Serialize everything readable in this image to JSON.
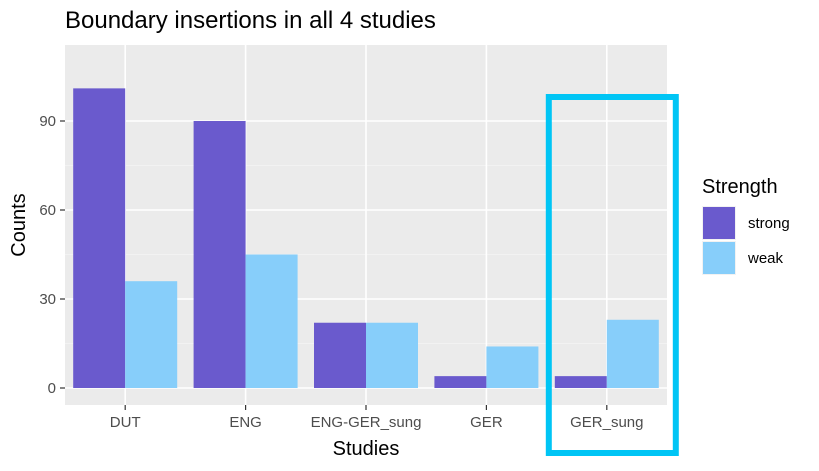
{
  "chart_data": {
    "type": "bar",
    "title": "Boundary insertions in all 4 studies",
    "xlabel": "Studies",
    "ylabel": "Counts",
    "categories": [
      "DUT",
      "ENG",
      "ENG-GER_sung",
      "GER",
      "GER_sung"
    ],
    "series": [
      {
        "name": "strong",
        "color": "#6a5acd",
        "values": [
          101,
          90,
          22,
          4,
          4
        ]
      },
      {
        "name": "weak",
        "color": "#87cefa",
        "values": [
          36,
          45,
          22,
          14,
          23
        ]
      }
    ],
    "ylim": [
      -5,
      111
    ],
    "yticks": [
      0,
      30,
      60,
      90
    ],
    "grid": true,
    "legend": {
      "title": "Strength",
      "position": "right"
    },
    "highlight": {
      "category": "GER_sung",
      "color": "#00c5f5"
    }
  }
}
